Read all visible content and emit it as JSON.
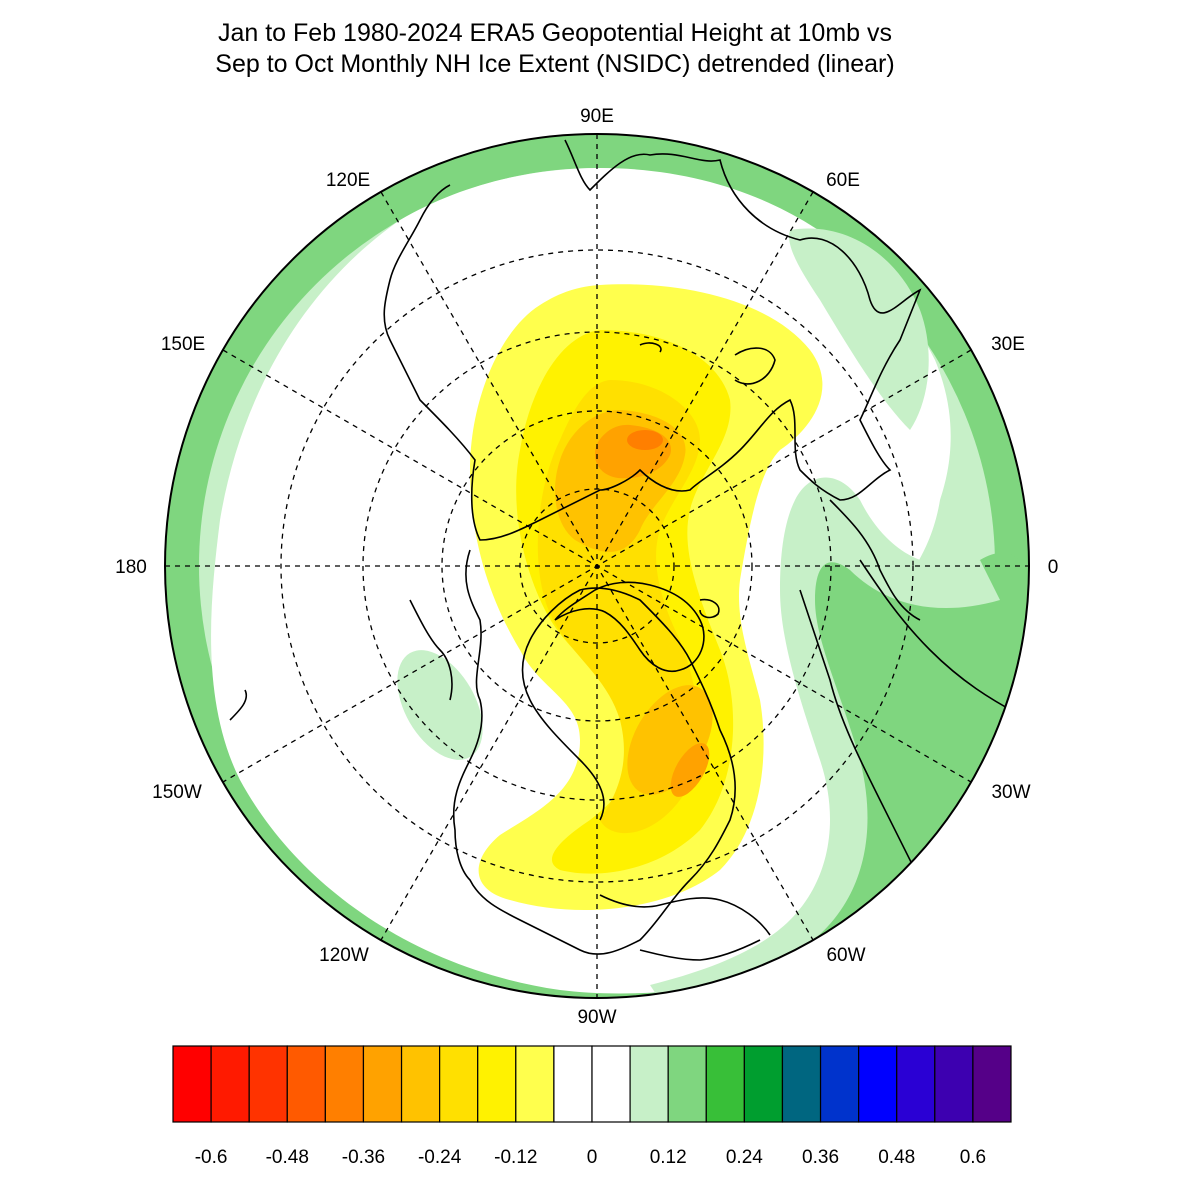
{
  "title": {
    "line1": "Jan to Feb 1980-2024 ERA5 Geopotential Height at 10mb vs",
    "line2": "Sep to Oct Monthly NH Ice Extent (NSIDC) detrended (linear)"
  },
  "map": {
    "projection": "north-polar-stereographic",
    "longitude_labels": {
      "n90e": "90E",
      "n120e": "120E",
      "n60e": "60E",
      "n150e": "150E",
      "n30e": "30E",
      "n180": "180",
      "n0": "0",
      "n150w": "150W",
      "n30w": "30W",
      "n120w": "120W",
      "n60w": "60W",
      "n90w": "90W"
    },
    "colors": {
      "ocean_land_background": "#ffffff",
      "coastline": "#000000",
      "grid": "#000000"
    }
  },
  "colorbar": {
    "colors": [
      "#ff0000",
      "#ff1a00",
      "#ff3300",
      "#ff5a00",
      "#ff7f00",
      "#ffa200",
      "#ffc200",
      "#ffe000",
      "#fff200",
      "#ffff4d",
      "#ffffff",
      "#ffffff",
      "#c7f0c8",
      "#7fd67f",
      "#38bf38",
      "#009e2f",
      "#006680",
      "#0033cc",
      "#0000ff",
      "#2a00d4",
      "#3d00b0",
      "#550088"
    ],
    "tick_labels": [
      "-0.6",
      "-0.48",
      "-0.36",
      "-0.24",
      "-0.12",
      "0",
      "0.12",
      "0.24",
      "0.36",
      "0.48",
      "0.6"
    ]
  }
}
